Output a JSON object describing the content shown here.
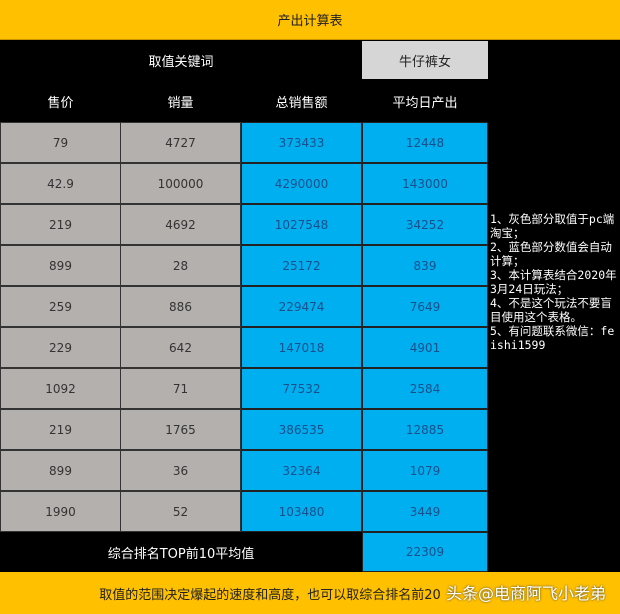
{
  "title": "产出计算表",
  "keyword_label": "取值关键词",
  "keyword_value": "牛仔裤女",
  "headers": [
    "售价",
    "销量",
    "总销售额",
    "平均日产出"
  ],
  "rows": [
    [
      "79",
      "4727",
      "373433",
      "12448"
    ],
    [
      "42.9",
      "100000",
      "4290000",
      "143000"
    ],
    [
      "219",
      "4692",
      "1027548",
      "34252"
    ],
    [
      "899",
      "28",
      "25172",
      "839"
    ],
    [
      "259",
      "886",
      "229474",
      "7649"
    ],
    [
      "229",
      "642",
      "147018",
      "4901"
    ],
    [
      "1092",
      "71",
      "77532",
      "2584"
    ],
    [
      "219",
      "1765",
      "386535",
      "12885"
    ],
    [
      "899",
      "36",
      "32364",
      "1079"
    ],
    [
      "1990",
      "52",
      "103480",
      "3449"
    ]
  ],
  "summary_label": "综合排名TOP前10平均值",
  "summary_value": "22309",
  "notes": [
    "1、灰色部分取值于pc端淘宝；",
    "2、蓝色部分数值会自动计算；",
    "3、本计算表结合2020年3月24日玩法；",
    "4、不是这个玩法不要盲目使用这个表格。",
    "5、有问题联系微信：feishi1599"
  ],
  "footer": "取值的范围决定爆起的速度和高度，也可以取综合排名前20",
  "watermark": "头条@电商阿飞小老弟",
  "colors": {
    "orange": "#FFC000",
    "gray": "#B4B0AE",
    "blue": "#00AFF0"
  }
}
